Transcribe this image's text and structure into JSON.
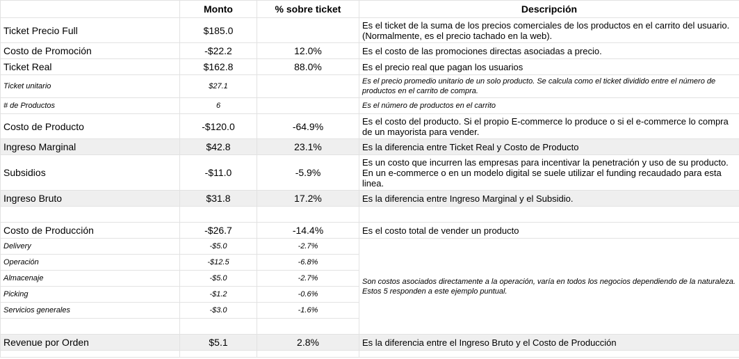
{
  "headers": {
    "label": "",
    "monto": "Monto",
    "pct": "% sobre ticket",
    "desc": "Descripción"
  },
  "rows": {
    "ticket_full": {
      "label": "Ticket Precio Full",
      "monto": "$185.0",
      "pct": "",
      "desc": "Es el ticket de la suma de los precios comerciales de los productos en el carrito del usuario. (Normalmente, es el precio tachado en la web)."
    },
    "costo_promocion": {
      "label": "Costo de Promoción",
      "monto": "-$22.2",
      "pct": "12.0%",
      "desc": "Es el costo de las promociones directas asociadas a precio."
    },
    "ticket_real": {
      "label": "Ticket Real",
      "monto": "$162.8",
      "pct": "88.0%",
      "desc": "Es el precio real que pagan los usuarios"
    },
    "ticket_unitario": {
      "label": "Ticket unitario",
      "monto": "$27.1",
      "pct": "",
      "desc": "Es el precio promedio unitario de un solo producto. Se calcula como el ticket dividido entre el número de productos en el carrito de compra."
    },
    "num_productos": {
      "label": "# de Productos",
      "monto": "6",
      "pct": "",
      "desc": "Es el número de productos en el carrito"
    },
    "costo_producto": {
      "label": "Costo de Producto",
      "monto": "-$120.0",
      "pct": "-64.9%",
      "desc": "Es el costo del producto. Si el propio E-commerce lo produce o si el e-commerce lo compra de un mayorista para vender."
    },
    "ingreso_marginal": {
      "label": "Ingreso Marginal",
      "monto": "$42.8",
      "pct": "23.1%",
      "desc": "Es la diferencia entre Ticket Real y Costo de Producto"
    },
    "subsidios": {
      "label": "Subsidios",
      "monto": "-$11.0",
      "pct": "-5.9%",
      "desc": "Es un costo que incurren las empresas para incentivar la penetración y uso de su producto. En un e-commerce o en un modelo digital se suele utilizar el funding recaudado para esta linea."
    },
    "ingreso_bruto": {
      "label": "Ingreso Bruto",
      "monto": "$31.8",
      "pct": "17.2%",
      "desc": "Es la diferencia entre Ingreso Marginal y el Subsidio."
    },
    "costo_produccion": {
      "label": "Costo de Producción",
      "monto": "-$26.7",
      "pct": "-14.4%",
      "desc": "Es el costo total de vender un producto"
    },
    "delivery": {
      "label": "Delivery",
      "monto": "-$5.0",
      "pct": "-2.7%"
    },
    "operacion": {
      "label": "Operación",
      "monto": "-$12.5",
      "pct": "-6.8%"
    },
    "almacenaje": {
      "label": "Almacenaje",
      "monto": "-$5.0",
      "pct": "-2.7%"
    },
    "picking": {
      "label": "Picking",
      "monto": "-$1.2",
      "pct": "-0.6%"
    },
    "servicios_generales": {
      "label": "Servicios generales",
      "monto": "-$3.0",
      "pct": "-1.6%"
    },
    "costos_operacion_desc": "Son costos asociados directamente a la operación, varía en todos los negocios dependiendo de la naturaleza. Estos 5 responden a este ejemplo puntual.",
    "revenue_orden": {
      "label": "Revenue por Orden",
      "monto": "$5.1",
      "pct": "2.8%",
      "desc": "Es la diferencia entre el Ingreso Bruto y el Costo de Producción"
    }
  }
}
